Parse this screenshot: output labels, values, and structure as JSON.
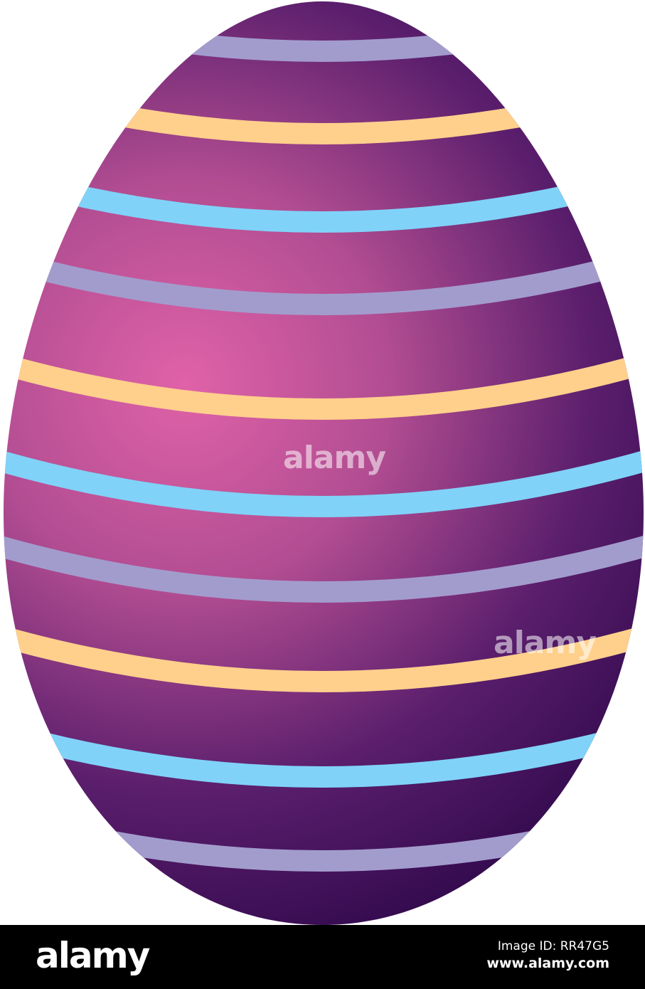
{
  "colors": {
    "egg_light": "#e062a8",
    "egg_dark": "#330a4e",
    "stripe_lavender": "#a29ccd",
    "stripe_yellow": "#ffd08c",
    "stripe_blue": "#80d2f8",
    "footer_bg": "#000000"
  },
  "stripes": [
    "lavender",
    "yellow",
    "blue",
    "lavender",
    "yellow",
    "blue",
    "lavender",
    "yellow",
    "blue",
    "lavender"
  ],
  "watermark": "alamy",
  "footer": {
    "logo": "alamy",
    "image_id": "Image ID: RR47G5",
    "url": "www.alamy.com"
  }
}
